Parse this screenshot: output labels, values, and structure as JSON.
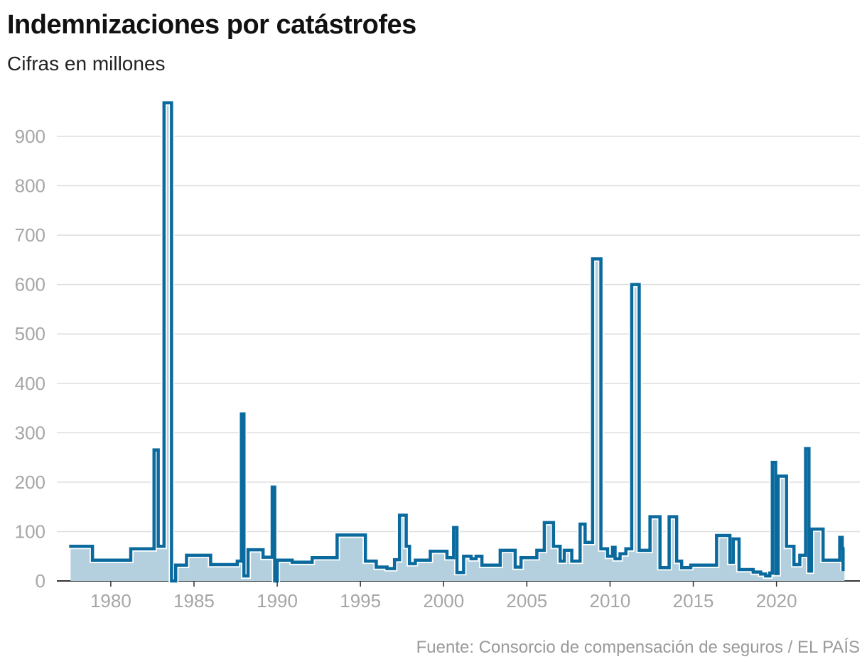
{
  "title": "Indemnizaciones por catástrofes",
  "subtitle": "Cifras en millones",
  "source": "Fuente: Consorcio de compensación de seguros / EL PAÍS",
  "colors": {
    "line": "#0a6a9e",
    "area": "#b4d0de",
    "grid": "#dddddd",
    "tick": "#a6a6a6"
  },
  "chart_data": {
    "type": "line",
    "title": "Indemnizaciones por catástrofes",
    "subtitle": "Cifras en millones",
    "xlabel": "",
    "ylabel": "",
    "xlim": [
      1977.4,
      2024.2
    ],
    "ylim": [
      0,
      970
    ],
    "yticks": [
      0,
      100,
      200,
      300,
      400,
      500,
      600,
      700,
      800,
      900
    ],
    "xticks": [
      1980,
      1985,
      1990,
      1995,
      2000,
      2005,
      2010,
      2015,
      2020
    ],
    "grid": true,
    "step": true,
    "series": [
      {
        "values": [
          [
            1977.5,
            70
          ],
          [
            1978.9,
            42
          ],
          [
            1981.2,
            65
          ],
          [
            1982.6,
            265
          ],
          [
            1982.85,
            70
          ],
          [
            1983.2,
            968
          ],
          [
            1983.65,
            0
          ],
          [
            1983.9,
            32
          ],
          [
            1984.55,
            52
          ],
          [
            1986.0,
            33
          ],
          [
            1987.6,
            40
          ],
          [
            1987.85,
            338
          ],
          [
            1988.0,
            10
          ],
          [
            1988.25,
            63
          ],
          [
            1989.15,
            48
          ],
          [
            1989.7,
            190
          ],
          [
            1989.85,
            0
          ],
          [
            1990.0,
            42
          ],
          [
            1990.9,
            38
          ],
          [
            1992.1,
            47
          ],
          [
            1993.6,
            93
          ],
          [
            1995.3,
            40
          ],
          [
            1995.95,
            28
          ],
          [
            1996.6,
            25
          ],
          [
            1997.05,
            43
          ],
          [
            1997.35,
            133
          ],
          [
            1997.75,
            70
          ],
          [
            1997.95,
            35
          ],
          [
            1998.3,
            42
          ],
          [
            1999.2,
            60
          ],
          [
            2000.2,
            47
          ],
          [
            2000.6,
            108
          ],
          [
            2000.8,
            17
          ],
          [
            2001.2,
            50
          ],
          [
            2001.65,
            45
          ],
          [
            2001.95,
            50
          ],
          [
            2002.3,
            32
          ],
          [
            2003.4,
            62
          ],
          [
            2004.3,
            28
          ],
          [
            2004.65,
            47
          ],
          [
            2005.6,
            62
          ],
          [
            2006.05,
            118
          ],
          [
            2006.6,
            70
          ],
          [
            2007.0,
            40
          ],
          [
            2007.25,
            62
          ],
          [
            2007.7,
            40
          ],
          [
            2008.2,
            115
          ],
          [
            2008.5,
            78
          ],
          [
            2008.95,
            652
          ],
          [
            2009.45,
            65
          ],
          [
            2009.85,
            50
          ],
          [
            2010.15,
            68
          ],
          [
            2010.3,
            45
          ],
          [
            2010.6,
            55
          ],
          [
            2010.95,
            65
          ],
          [
            2011.3,
            600
          ],
          [
            2011.75,
            62
          ],
          [
            2012.4,
            130
          ],
          [
            2013.0,
            27
          ],
          [
            2013.55,
            130
          ],
          [
            2014.0,
            40
          ],
          [
            2014.3,
            27
          ],
          [
            2014.85,
            32
          ],
          [
            2016.4,
            92
          ],
          [
            2017.2,
            38
          ],
          [
            2017.4,
            85
          ],
          [
            2017.75,
            23
          ],
          [
            2018.6,
            18
          ],
          [
            2019.05,
            14
          ],
          [
            2019.35,
            10
          ],
          [
            2019.6,
            16
          ],
          [
            2019.75,
            240
          ],
          [
            2019.95,
            15
          ],
          [
            2020.1,
            212
          ],
          [
            2020.6,
            70
          ],
          [
            2021.05,
            33
          ],
          [
            2021.4,
            52
          ],
          [
            2021.75,
            268
          ],
          [
            2021.95,
            20
          ],
          [
            2022.1,
            105
          ],
          [
            2022.8,
            42
          ],
          [
            2023.8,
            88
          ],
          [
            2023.95,
            65
          ],
          [
            2024.0,
            20
          ]
        ]
      }
    ]
  }
}
